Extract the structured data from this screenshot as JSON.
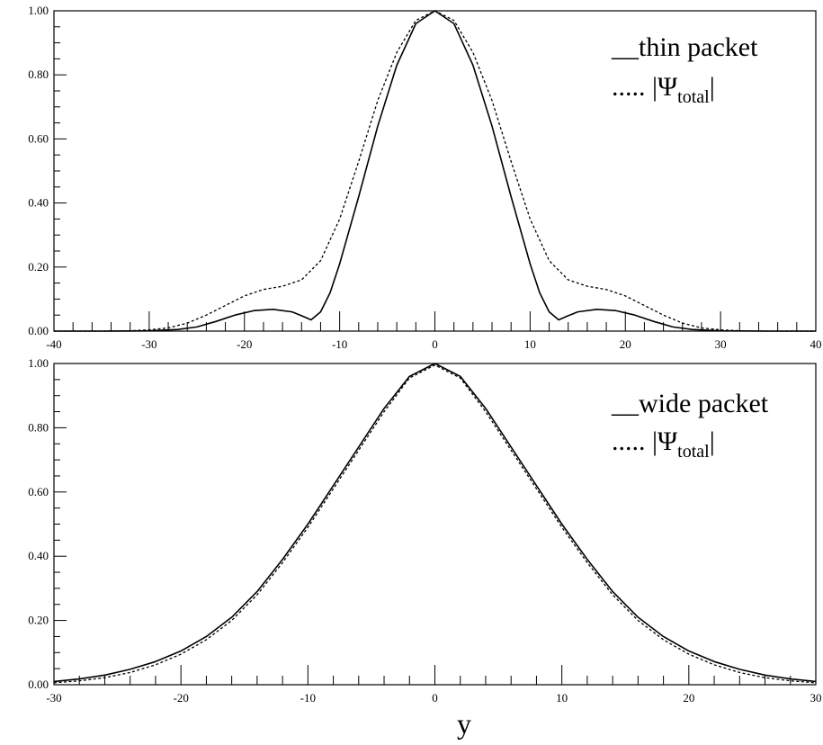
{
  "chart_data": [
    {
      "type": "line",
      "xlim": [
        -40,
        40
      ],
      "ylim": [
        0,
        1.0
      ],
      "x_ticks": [
        "-40",
        "-30",
        "-20",
        "-10",
        "0",
        "10",
        "20",
        "30",
        "40"
      ],
      "y_ticks": [
        "0.00",
        "0.20",
        "0.40",
        "0.60",
        "0.80",
        "1.00"
      ],
      "xlabel": "",
      "legend": [
        {
          "prefix": "__",
          "text": "thin packet",
          "style": "solid"
        },
        {
          "prefix": "..... |",
          "text": "Ψ",
          "sub": "total",
          "suffix": "|",
          "style": "dotted"
        }
      ],
      "legend_position": "top-right",
      "series": [
        {
          "name": "thin packet",
          "style": "solid",
          "x": [
            -40,
            -35,
            -30,
            -27,
            -25,
            -23,
            -21,
            -19,
            -17,
            -15,
            -14,
            -13,
            -12,
            -11,
            -10,
            -8,
            -6,
            -4,
            -2,
            0,
            2,
            4,
            6,
            8,
            10,
            11,
            12,
            13,
            14,
            15,
            17,
            19,
            21,
            23,
            25,
            27,
            30,
            35,
            40
          ],
          "y": [
            0.0,
            0.0,
            0.001,
            0.005,
            0.013,
            0.03,
            0.05,
            0.064,
            0.068,
            0.06,
            0.048,
            0.035,
            0.06,
            0.12,
            0.21,
            0.42,
            0.64,
            0.83,
            0.96,
            1.0,
            0.96,
            0.83,
            0.64,
            0.42,
            0.21,
            0.12,
            0.06,
            0.035,
            0.048,
            0.06,
            0.068,
            0.064,
            0.05,
            0.03,
            0.013,
            0.005,
            0.001,
            0.0,
            0.0
          ]
        },
        {
          "name": "|Ψtotal|",
          "style": "dotted",
          "x": [
            -40,
            -35,
            -32,
            -30,
            -28,
            -26,
            -24,
            -22,
            -20,
            -18,
            -16,
            -14,
            -12,
            -10,
            -8,
            -6,
            -4,
            -2,
            0,
            2,
            4,
            6,
            8,
            10,
            12,
            14,
            16,
            18,
            20,
            22,
            24,
            26,
            28,
            30,
            32,
            35,
            40
          ],
          "y": [
            0.0,
            0.0,
            0.001,
            0.004,
            0.01,
            0.025,
            0.05,
            0.08,
            0.11,
            0.13,
            0.14,
            0.16,
            0.22,
            0.35,
            0.53,
            0.72,
            0.87,
            0.97,
            1.0,
            0.97,
            0.87,
            0.72,
            0.53,
            0.35,
            0.22,
            0.16,
            0.14,
            0.13,
            0.11,
            0.08,
            0.05,
            0.025,
            0.01,
            0.004,
            0.001,
            0.0,
            0.0
          ]
        }
      ]
    },
    {
      "type": "line",
      "xlim": [
        -30,
        30
      ],
      "ylim": [
        0,
        1.0
      ],
      "x_ticks": [
        "-30",
        "-20",
        "-10",
        "0",
        "10",
        "20",
        "30"
      ],
      "y_ticks": [
        "0.00",
        "0.20",
        "0.40",
        "0.60",
        "0.80",
        "1.00"
      ],
      "xlabel": "y",
      "legend": [
        {
          "prefix": "__",
          "text": "wide packet",
          "style": "solid"
        },
        {
          "prefix": "..... |",
          "text": "Ψ",
          "sub": "total",
          "suffix": "|",
          "style": "dotted"
        }
      ],
      "legend_position": "top-right",
      "series": [
        {
          "name": "wide packet",
          "style": "solid",
          "x": [
            -30,
            -28,
            -26,
            -24,
            -22,
            -20,
            -18,
            -16,
            -14,
            -12,
            -10,
            -8,
            -6,
            -4,
            -2,
            0,
            2,
            4,
            6,
            8,
            10,
            12,
            14,
            16,
            18,
            20,
            22,
            24,
            26,
            28,
            30
          ],
          "y": [
            0.01,
            0.018,
            0.03,
            0.048,
            0.072,
            0.105,
            0.15,
            0.21,
            0.29,
            0.39,
            0.5,
            0.62,
            0.74,
            0.86,
            0.96,
            1.0,
            0.96,
            0.86,
            0.74,
            0.62,
            0.5,
            0.39,
            0.29,
            0.21,
            0.15,
            0.105,
            0.072,
            0.048,
            0.03,
            0.018,
            0.01
          ]
        },
        {
          "name": "|Ψtotal|",
          "style": "dotted",
          "x": [
            -30,
            -28,
            -26,
            -24,
            -22,
            -20,
            -18,
            -16,
            -14,
            -12,
            -10,
            -8,
            -6,
            -4,
            -2,
            0,
            2,
            4,
            6,
            8,
            10,
            12,
            14,
            16,
            18,
            20,
            22,
            24,
            26,
            28,
            30
          ],
          "y": [
            0.006,
            0.012,
            0.022,
            0.038,
            0.062,
            0.095,
            0.14,
            0.2,
            0.28,
            0.38,
            0.49,
            0.61,
            0.73,
            0.85,
            0.955,
            0.995,
            0.955,
            0.85,
            0.73,
            0.61,
            0.49,
            0.38,
            0.28,
            0.2,
            0.14,
            0.095,
            0.062,
            0.038,
            0.022,
            0.012,
            0.006
          ]
        }
      ]
    }
  ]
}
